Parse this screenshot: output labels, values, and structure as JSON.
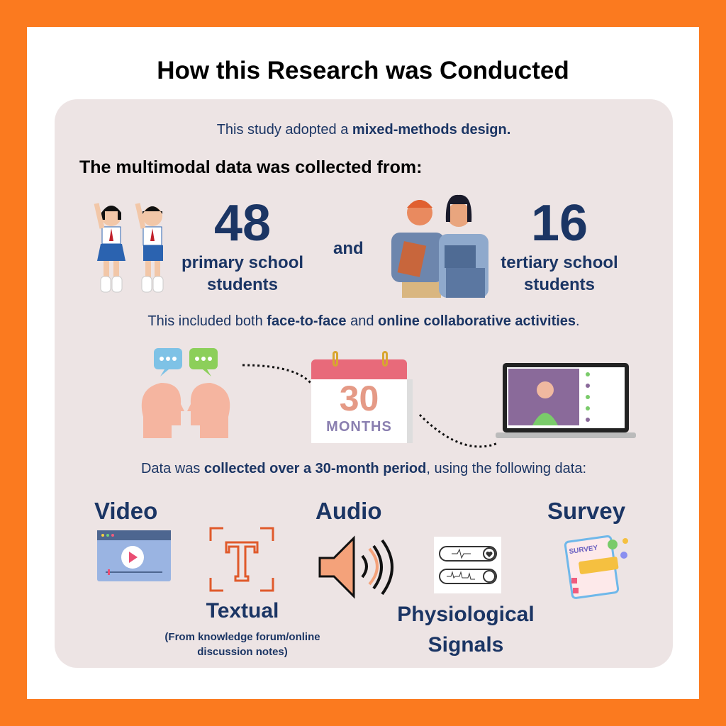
{
  "title": "How this Research was Conducted",
  "intro": {
    "pre": "This study adopted a ",
    "bold": "mixed-methods design."
  },
  "heading": "The multimodal data was collected from:",
  "groups": [
    {
      "count": "48",
      "line1": "primary school",
      "line2": "students"
    },
    {
      "count": "16",
      "line1": "tertiary school",
      "line2": "students"
    }
  ],
  "and": "and",
  "activities": {
    "pre": "This included both ",
    "b1": "face-to-face",
    "mid": " and ",
    "b2": "online collaborative activities",
    "post": "."
  },
  "calendar": {
    "number": "30",
    "word": "MONTHS"
  },
  "period": {
    "pre": "Data was ",
    "bold": "collected over a 30-month period",
    "post": ", using the following data:"
  },
  "data_types": {
    "video": "Video",
    "textual": "Textual",
    "textual_note1": "(From knowledge forum/online",
    "textual_note2": "discussion notes)",
    "audio": "Audio",
    "physio1": "Physiological",
    "physio2": "Signals",
    "survey": "Survey",
    "survey_icon_text": "SURVEY"
  },
  "colors": {
    "frame": "#fb7a1f",
    "card": "#ede4e4",
    "navy": "#1b3564",
    "accent": "#e05a2b"
  }
}
